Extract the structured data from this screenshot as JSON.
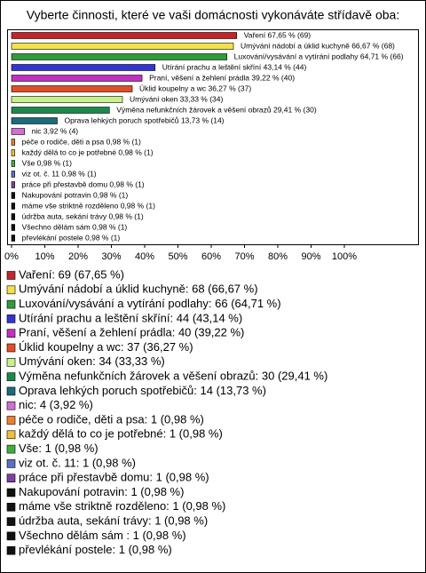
{
  "chart_data": {
    "type": "hbar",
    "title": "Vyberte činnosti, které ve vaši domácnosti vykonáváte střídavě oba:",
    "categories": [
      "Vaření",
      "Umývání nádobí a úklid kuchyně",
      "Luxování/vysávání a vytírání podlahy",
      "Utírání prachu a leštění skříní",
      "Praní, věšení a žehlení prádla",
      "Úklid koupelny a wc",
      "Umývání oken",
      "Výměna nefunkčních žárovek a věšení obrazů",
      "Oprava lehkých poruch spotřebičů",
      "nic",
      "péče o rodiče, děti a psa",
      "každý dělá to co je potřebné",
      "Vše",
      "viz ot. č. 11",
      "práce při přestavbě domu",
      "Nakupování potravin",
      "máme vše striktně rozděleno",
      "údržba auta, sekání trávy",
      "Všechno dělám sám",
      "převlékání postele"
    ],
    "values": [
      67.65,
      66.67,
      64.71,
      43.14,
      39.22,
      36.27,
      33.33,
      29.41,
      13.73,
      3.92,
      0.98,
      0.98,
      0.98,
      0.98,
      0.98,
      0.98,
      0.98,
      0.98,
      0.98,
      0.98
    ],
    "value_labels": [
      "Vaření 67,65 % (69)",
      "Umývání nádobí a úklid kuchyně 66,67 % (68)",
      "Luxování/vysávání a vytírání podlahy 64,71 % (66)",
      "Utírání prachu a leštění skříní 43,14 % (44)",
      "Praní, věšení a žehlení prádla 39,22 % (40)",
      "Úklid koupelny a wc 36,27 % (37)",
      "Umývání oken 33,33 % (34)",
      "Výměna nefunkčních žárovek a věšení obrazů 29,41 % (30)",
      "Oprava lehkých poruch spotřebičů 13,73 % (14)",
      "nic 3,92 % (4)",
      "péče o rodiče, děti a psa 0,98 % (1)",
      "každý dělá to co je potřebné 0,98 % (1)",
      "Vše 0,98 % (1)",
      "viz ot. č. 11 0,98 % (1)",
      "práce při přestavbě domu 0,98 % (1)",
      "Nakupování potravin 0,98 % (1)",
      "máme vše striktně rozděleno 0,98 % (1)",
      "údržba auta, sekání trávy 0,98 % (1)",
      "Všechno dělám sám 0,98 % (1)",
      "převlékání postele 0,98 % (1)"
    ],
    "legend_labels": [
      "Vaření: 69 (67,65 %)",
      "Umývání nádobí a úklid kuchyně: 68 (66,67 %)",
      "Luxování/vysávání a vytírání podlahy: 66 (64,71 %)",
      "Utírání prachu a leštění skříní: 44 (43,14 %)",
      "Praní, věšení a žehlení prádla: 40 (39,22 %)",
      "Úklid koupelny a wc: 37 (36,27 %)",
      "Umývání oken: 34 (33,33 %)",
      "Výměna nefunkčních žárovek a věšení obrazů: 30 (29,41 %)",
      "Oprava lehkých poruch spotřebičů: 14 (13,73 %)",
      "nic: 4 (3,92 %)",
      "péče o rodiče, děti a psa: 1 (0,98 %)",
      "každý dělá to co je potřebné: 1 (0,98 %)",
      "Vše: 1 (0,98 %)",
      "viz ot. č. 11: 1 (0,98 %)",
      "práce při přestavbě domu: 1 (0,98 %)",
      "Nakupování potravin: 1 (0,98 %)",
      "máme vše striktně rozděleno: 1 (0,98 %)",
      "údržba auta, sekání trávy: 1 (0,98 %)",
      "Všechno dělám sám : 1 (0,98 %)",
      "převlékání postele: 1 (0,98 %)"
    ],
    "colors": [
      "#c0262c",
      "#f2e24a",
      "#2f9b3a",
      "#3434d0",
      "#c22fc4",
      "#e04e26",
      "#c8f08c",
      "#198a4a",
      "#1b6b7b",
      "#d070d2",
      "#ef7f2f",
      "#eec03c",
      "#3fae3f",
      "#5d6fc0",
      "#7f3fa0",
      "#111111",
      "#111111",
      "#111111",
      "#111111",
      "#111111"
    ],
    "xlim": [
      0,
      100
    ],
    "xticks": [
      {
        "value": 0,
        "label": "0%"
      },
      {
        "value": 10,
        "label": "10%"
      },
      {
        "value": 20,
        "label": "20%"
      },
      {
        "value": 30,
        "label": "30%"
      },
      {
        "value": 40,
        "label": "40%"
      },
      {
        "value": 50,
        "label": "50%"
      },
      {
        "value": 60,
        "label": "60%"
      },
      {
        "value": 70,
        "label": "70%"
      },
      {
        "value": 80,
        "label": "80%"
      },
      {
        "value": 90,
        "label": "90%"
      },
      {
        "value": 100,
        "label": "100%"
      }
    ]
  }
}
